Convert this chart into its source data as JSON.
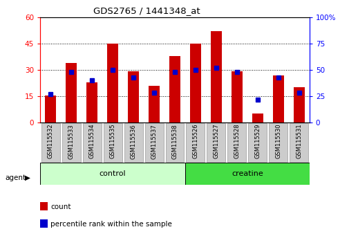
{
  "title": "GDS2765 / 1441348_at",
  "categories": [
    "GSM115532",
    "GSM115533",
    "GSM115534",
    "GSM115535",
    "GSM115536",
    "GSM115537",
    "GSM115538",
    "GSM115526",
    "GSM115527",
    "GSM115528",
    "GSM115529",
    "GSM115530",
    "GSM115531"
  ],
  "counts": [
    15.5,
    34.0,
    23.0,
    45.0,
    29.0,
    21.0,
    38.0,
    45.0,
    52.0,
    29.0,
    5.0,
    27.0,
    20.0
  ],
  "percentile_ranks": [
    27,
    48,
    40,
    50,
    43,
    28,
    48,
    50,
    52,
    48,
    22,
    43,
    28
  ],
  "group_labels": [
    "control",
    "creatine"
  ],
  "ctrl_count": 7,
  "creat_count": 6,
  "ctrl_color": "#ccffcc",
  "creat_color": "#44dd44",
  "bar_color": "#cc0000",
  "dot_color": "#0000cc",
  "ylim_left": [
    0,
    60
  ],
  "ylim_right": [
    0,
    100
  ],
  "yticks_left": [
    0,
    15,
    30,
    45,
    60
  ],
  "yticks_right": [
    0,
    25,
    50,
    75,
    100
  ],
  "ytick_labels_right": [
    "0",
    "25",
    "50",
    "75",
    "100%"
  ],
  "background_color": "#ffffff",
  "plot_bg": "#ffffff",
  "tick_bg": "#cccccc",
  "agent_label": "agent",
  "legend_count": "count",
  "legend_pct": "percentile rank within the sample"
}
